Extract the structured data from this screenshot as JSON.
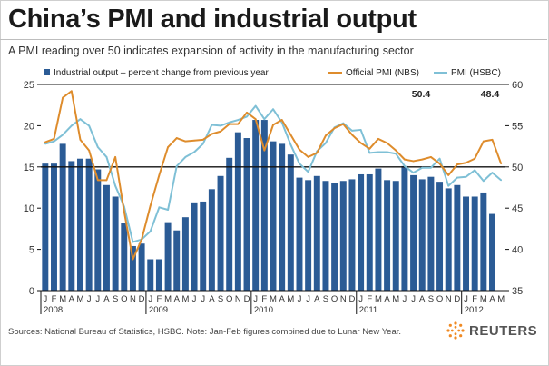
{
  "header": {
    "title": "China’s PMI and industrial output",
    "subtitle": "A PMI reading over 50 indicates expansion of activity in the manufacturing sector"
  },
  "footer": {
    "source": "Sources: National Bureau of Statistics, HSBC. Note: Jan-Feb figures combined due to Lunar New Year.",
    "logo_text": "REUTERS"
  },
  "colors": {
    "bar": "#2b5b95",
    "nbs": "#de8c2c",
    "hsbc": "#7fc0d6",
    "axis": "#222222",
    "text": "#333333"
  },
  "chart_data": {
    "type": "bar",
    "months": [
      "J",
      "F",
      "M",
      "A",
      "M",
      "J",
      "J",
      "A",
      "S",
      "O",
      "N",
      "D",
      "J",
      "F",
      "M",
      "A",
      "M",
      "J",
      "J",
      "A",
      "S",
      "O",
      "N",
      "D",
      "J",
      "F",
      "M",
      "A",
      "M",
      "J",
      "J",
      "A",
      "S",
      "O",
      "N",
      "D",
      "J",
      "F",
      "M",
      "A",
      "M",
      "J",
      "J",
      "A",
      "S",
      "O",
      "N",
      "D",
      "J",
      "F",
      "M",
      "A",
      "M"
    ],
    "year_labels": [
      "2008",
      "2009",
      "2010",
      "2011",
      "2012"
    ],
    "left_axis": {
      "range": [
        0,
        25
      ],
      "ticks": [
        0,
        5,
        10,
        15,
        20,
        25
      ]
    },
    "right_axis": {
      "range": [
        35,
        60
      ],
      "ticks": [
        35,
        40,
        45,
        50,
        55,
        60
      ],
      "reference_line": 50
    },
    "series": [
      {
        "name": "Industrial output – percent change from previous year",
        "kind": "bar",
        "axis": "left",
        "values": [
          15.4,
          15.4,
          17.8,
          15.7,
          16.0,
          16.0,
          14.7,
          12.8,
          11.4,
          8.2,
          5.4,
          5.7,
          3.8,
          3.8,
          8.3,
          7.3,
          8.9,
          10.7,
          10.8,
          12.3,
          13.9,
          16.1,
          19.2,
          18.5,
          20.7,
          20.7,
          18.1,
          17.8,
          16.5,
          13.7,
          13.4,
          13.9,
          13.3,
          13.1,
          13.3,
          13.5,
          14.1,
          14.1,
          14.8,
          13.4,
          13.3,
          15.1,
          14.0,
          13.5,
          13.8,
          13.2,
          12.4,
          12.8,
          11.4,
          11.4,
          11.9,
          9.3,
          null
        ]
      },
      {
        "name": "Official PMI (NBS)",
        "kind": "line",
        "axis": "right",
        "values": [
          53.0,
          53.4,
          58.4,
          59.2,
          53.3,
          52.0,
          48.4,
          48.4,
          51.2,
          44.6,
          38.8,
          41.2,
          45.3,
          49.0,
          52.4,
          53.5,
          53.1,
          53.2,
          53.3,
          54.0,
          54.3,
          55.2,
          55.2,
          56.6,
          55.8,
          52.0,
          55.1,
          55.7,
          53.9,
          52.1,
          51.2,
          51.7,
          53.8,
          54.7,
          55.2,
          53.9,
          52.9,
          52.2,
          53.4,
          52.9,
          52.0,
          50.9,
          50.7,
          50.9,
          51.2,
          50.4,
          49.0,
          50.3,
          50.5,
          51.0,
          53.1,
          53.3,
          50.4
        ]
      },
      {
        "name": "PMI (HSBC)",
        "kind": "line",
        "axis": "right",
        "values": [
          52.8,
          53.1,
          53.9,
          55.0,
          55.8,
          55.0,
          52.4,
          51.2,
          47.7,
          45.2,
          40.9,
          41.2,
          42.2,
          45.1,
          44.8,
          50.1,
          51.2,
          51.8,
          52.8,
          55.1,
          55.0,
          55.4,
          55.7,
          56.1,
          57.4,
          55.8,
          57.0,
          55.4,
          52.7,
          50.4,
          49.4,
          51.9,
          52.9,
          54.8,
          55.3,
          54.4,
          54.5,
          51.7,
          51.8,
          51.8,
          51.6,
          50.1,
          49.3,
          49.9,
          49.9,
          51.0,
          47.7,
          48.7,
          48.8,
          49.6,
          48.3,
          49.3,
          48.4
        ]
      }
    ],
    "annotations": [
      {
        "text": "50.4",
        "series": "Official PMI (NBS)"
      },
      {
        "text": "48.4",
        "series": "PMI (HSBC)"
      }
    ],
    "legend": {
      "placement": "top"
    }
  }
}
